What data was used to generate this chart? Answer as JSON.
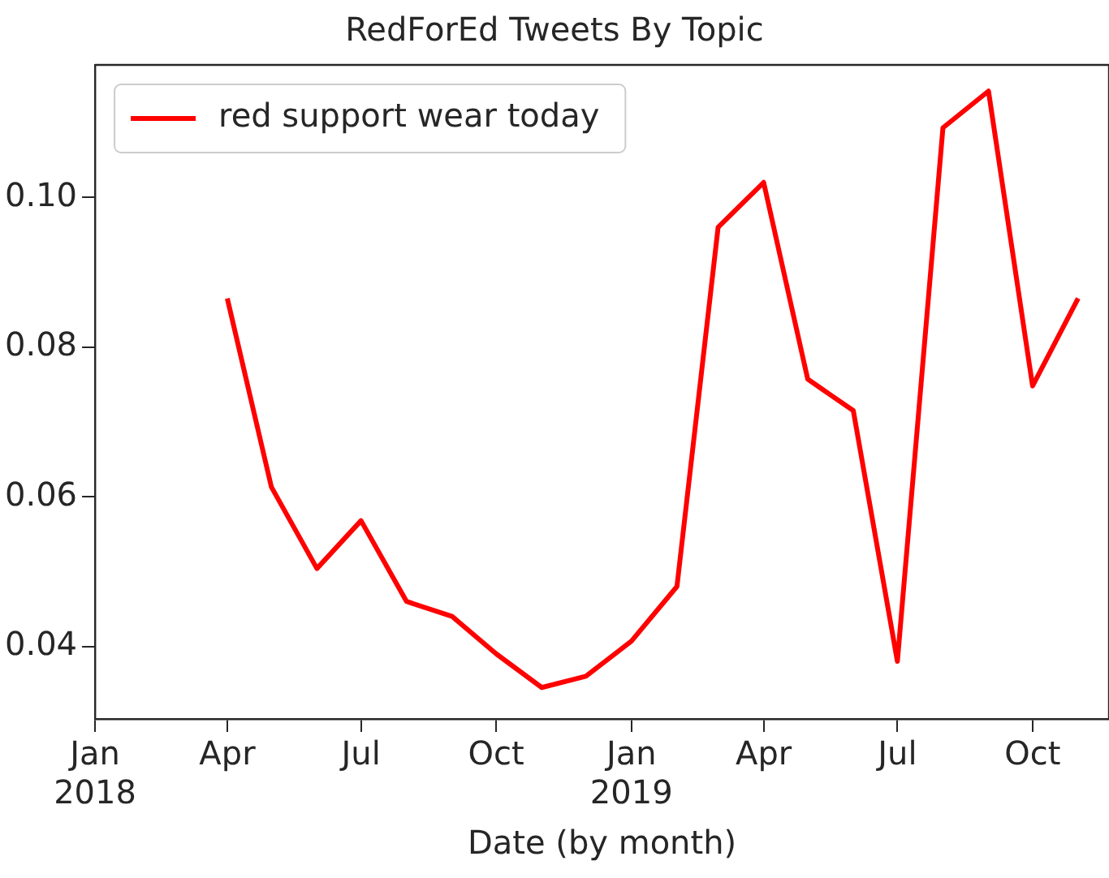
{
  "chart_data": {
    "type": "line",
    "title": "RedForEd Tweets By Topic",
    "xlabel": "Date (by month)",
    "x": [
      "2018-04",
      "2018-05",
      "2018-06",
      "2018-07",
      "2018-08",
      "2018-09",
      "2018-10",
      "2018-11",
      "2018-12",
      "2019-01",
      "2019-02",
      "2019-03",
      "2019-04",
      "2019-05",
      "2019-06",
      "2019-07",
      "2019-08",
      "2019-09",
      "2019-10",
      "2019-11"
    ],
    "series": [
      {
        "name": "red support wear today",
        "color": "#ff0000",
        "values": [
          0.0865,
          0.0613,
          0.0504,
          0.0568,
          0.046,
          0.044,
          0.039,
          0.0345,
          0.036,
          0.0407,
          0.048,
          0.096,
          0.102,
          0.0757,
          0.0715,
          0.038,
          0.1093,
          0.1142,
          0.0748,
          0.0865
        ]
      }
    ],
    "xlim": [
      "2018-01",
      "2019-11-22"
    ],
    "xticks": [
      {
        "value": "2018-01",
        "label": "Jan\n2018"
      },
      {
        "value": "2018-04",
        "label": "Apr"
      },
      {
        "value": "2018-07",
        "label": "Jul"
      },
      {
        "value": "2018-10",
        "label": "Oct"
      },
      {
        "value": "2019-01",
        "label": "Jan\n2019"
      },
      {
        "value": "2019-04",
        "label": "Apr"
      },
      {
        "value": "2019-07",
        "label": "Jul"
      },
      {
        "value": "2019-10",
        "label": "Oct"
      }
    ],
    "ylim": [
      0.0303,
      0.1177
    ],
    "yticks": [
      0.04,
      0.06,
      0.08,
      {
        "value": 0.1,
        "label": "0.10"
      }
    ],
    "grid": false,
    "legend": "top left",
    "marker": "none",
    "line_style": "solid"
  }
}
